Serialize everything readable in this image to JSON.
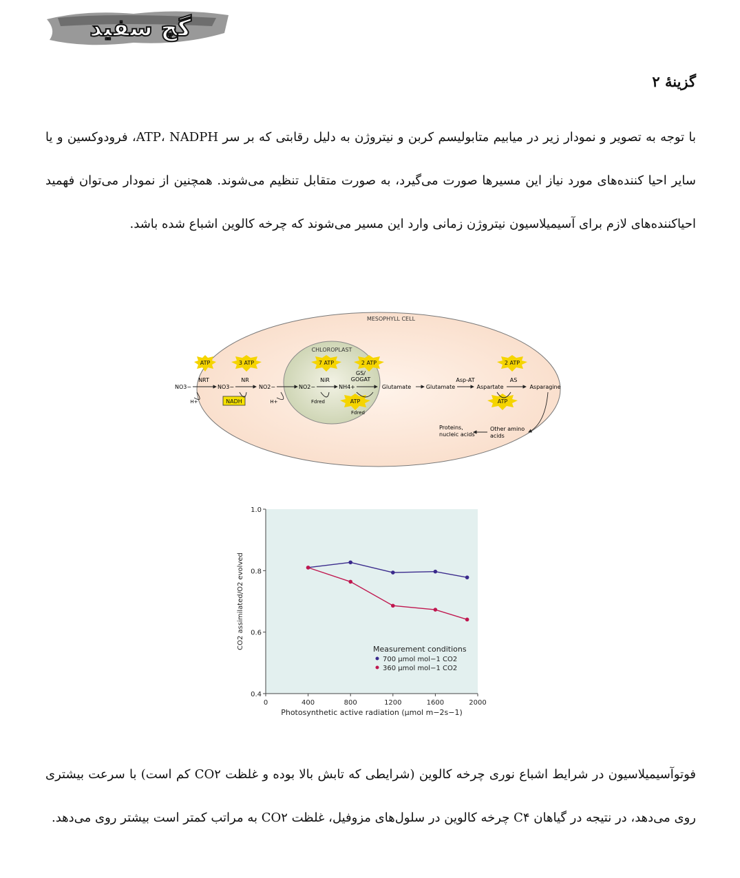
{
  "logo": {
    "text": "گچ سفید"
  },
  "heading": "گزینهٔ ۲",
  "paragraph1": "با توجه به تصویر و نمودار زیر در میابیم متابولیسم کربن و نیتروژن به دلیل رقابتی که بر سر ATP، NADPH، فرودوکسین و یا سایر احیا کننده‌های مورد نیاز این مسیرها صورت می‌گیرد، به صورت متقابل تنظیم می‌شوند. همچنین از نمودار می‌توان فهمید احیاکننده‌های لازم برای آسیمیلاسیون نیتروژن زمانی وارد این مسیر می‌شوند که چرخه کالوین اشباع شده باشد.",
  "paragraph2": "فوتوآسیمیلاسیون در شرایط اشباع نوری چرخه کالوین (شرایطی که تابش بالا بوده و غلظت CO۲ کم است) با سرعت بیشتری روی می‌دهد، در نتیجه در گیاهان C۴ چرخه کالوین در سلول‌های مزوفیل، غلظت CO۲ به مراتب کمتر است بیشتر روی می‌دهد.",
  "diagram": {
    "cell_label": "MESOPHYLL CELL",
    "chloroplast_label": "CHLOROPLAST",
    "atp_badges": [
      "ATP",
      "3 ATP",
      "7 ATP",
      "2 ATP",
      "2 ATP"
    ],
    "atp_lower": [
      "ATP",
      "ATP"
    ],
    "nadph_box": "NADH",
    "enzymes": [
      "NRT",
      "NR",
      "NiR",
      "GS/",
      "GOGAT",
      "Asp-AT",
      "AS"
    ],
    "metabolites": [
      "NO3−",
      "NO3−",
      "NO2−",
      "NO2−",
      "NH4+",
      "Glutamate",
      "Glutamate",
      "Aspartate",
      "Asparagine"
    ],
    "protons": [
      "H+",
      "H+"
    ],
    "fd": [
      "Fdred",
      "Fdred"
    ],
    "products": [
      "Proteins,",
      "nucleic acids",
      "Other amino",
      "acids"
    ],
    "colors": {
      "cell": "#fbe3d4",
      "chloroplast": "#dde3c8",
      "atp": "#f5d400",
      "nadh": "#f5e000"
    }
  },
  "chart_data": {
    "type": "line",
    "xlabel": "Photosynthetic active radiation (μmol m−2s−1)",
    "ylabel": "CO2 assimilated/O2 evolved",
    "xlim": [
      0,
      2000
    ],
    "ylim": [
      0.4,
      1.0
    ],
    "xticks": [
      "0",
      "400",
      "800",
      "1200",
      "1600",
      "2000"
    ],
    "yticks": [
      "0.4",
      "0.6",
      "0.8",
      "1.0"
    ],
    "legend_title": "Measurement conditions",
    "legend_position": "bottom-right",
    "series": [
      {
        "name": "700 μmol mol−1 CO2",
        "color": "#3a2a8c",
        "x": [
          400,
          800,
          1200,
          1600,
          1900
        ],
        "y": [
          0.81,
          0.827,
          0.794,
          0.797,
          0.778
        ]
      },
      {
        "name": "360 μmol mol−1 CO2",
        "color": "#c0174f",
        "x": [
          400,
          800,
          1200,
          1600,
          1900
        ],
        "y": [
          0.81,
          0.764,
          0.686,
          0.673,
          0.641
        ]
      }
    ],
    "colors": {
      "plot_bg": "#e3f0ef"
    }
  }
}
